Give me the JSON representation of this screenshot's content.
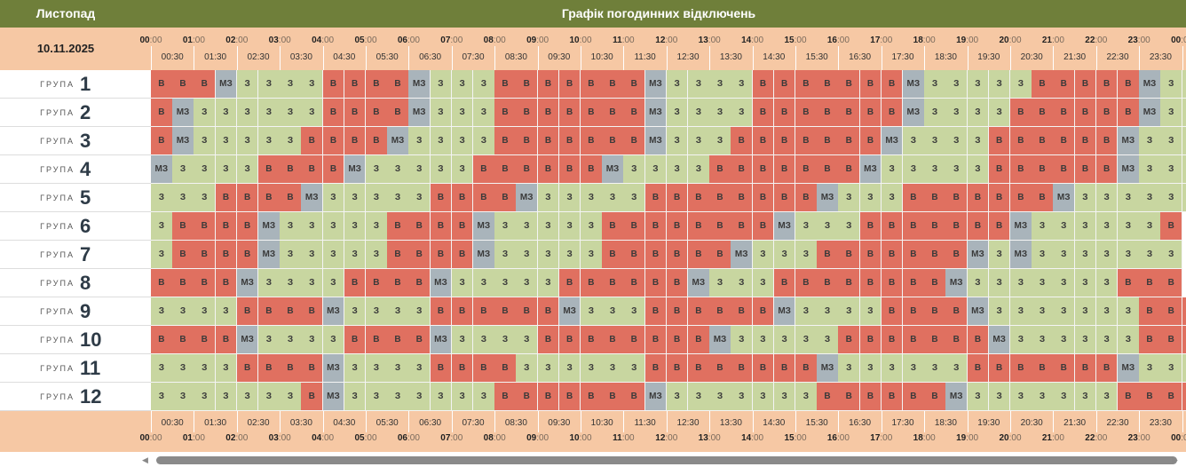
{
  "header": {
    "month": "Листопад",
    "title": "Графік погодинних відключень",
    "date": "10.11.2025"
  },
  "timeline": {
    "hours": [
      "00",
      "01",
      "02",
      "03",
      "04",
      "05",
      "06",
      "07",
      "08",
      "09",
      "10",
      "11",
      "12",
      "13",
      "14",
      "15",
      "16",
      "17",
      "18",
      "19",
      "20",
      "21",
      "22",
      "23",
      "00"
    ],
    "minutes": ":00",
    "half_hours": [
      "00:30",
      "01:30",
      "02:30",
      "03:30",
      "04:30",
      "05:30",
      "06:30",
      "07:30",
      "08:30",
      "09:30",
      "10:30",
      "11:30",
      "12:30",
      "13:30",
      "14:30",
      "15:30",
      "16:30",
      "17:30",
      "18:30",
      "19:30",
      "20:30",
      "21:30",
      "22:30",
      "23:30"
    ]
  },
  "legend_codes": {
    "B": "В",
    "Z": "З",
    "MZ": "МЗ"
  },
  "colors": {
    "B": "#e07060",
    "Z": "#c8d6a0",
    "MZ": "#a9b4bb",
    "topbar": "#6f7f3a",
    "header": "#f6c8a4"
  },
  "group_word": "ГРУПА",
  "groups": [
    {
      "number": "1",
      "slots": "B B B MZ Z Z Z Z B B B B MZ Z Z Z B B B B B B B MZ Z Z Z Z B B B B B B B MZ Z Z Z Z Z B B B B B MZ Z Z"
    },
    {
      "number": "2",
      "slots": "B MZ Z Z Z Z Z Z B B B B MZ Z Z Z B B B B B B B MZ Z Z Z Z B B B B B B B MZ Z Z Z Z B B B B B B MZ Z Z"
    },
    {
      "number": "3",
      "slots": "B MZ Z Z Z Z Z B B B B MZ Z Z Z Z B B B B B B B MZ Z Z Z B B B B B B B MZ Z Z Z Z B B B B B B MZ Z Z Z"
    },
    {
      "number": "4",
      "slots": "MZ Z Z Z Z B B B B MZ Z Z Z Z Z B B B B B B MZ Z Z Z Z B B B B B B B MZ Z Z Z Z Z B B B B B B MZ Z Z Z"
    },
    {
      "number": "5",
      "slots": "Z Z Z B B B B MZ Z Z Z Z Z B B B B MZ Z Z Z Z Z B B B B B B B B MZ Z Z Z B B B B B B B MZ Z Z Z Z Z Z"
    },
    {
      "number": "6",
      "slots": "Z B B B B MZ Z Z Z Z Z B B B B MZ Z Z Z Z Z B B B B B B B B MZ Z Z Z B B B B B B B MZ Z Z Z Z Z Z B"
    },
    {
      "number": "7",
      "slots": "Z B B B B MZ Z Z Z Z Z B B B B MZ Z Z Z Z Z B B B B B B MZ Z Z Z B B B B B B B MZ Z MZ Z Z Z Z Z Z Z"
    },
    {
      "number": "8",
      "slots": "B B B B MZ Z Z Z Z B B B B MZ Z Z Z Z Z B B B B B B MZ Z Z Z B B B B B B B B MZ Z Z Z Z Z Z Z B B B"
    },
    {
      "number": "9",
      "slots": "Z Z Z Z B B B B MZ Z Z Z Z B B B B B B MZ Z Z Z B B B B B B MZ Z Z Z Z B B B B MZ Z Z Z Z Z Z Z B B B"
    },
    {
      "number": "10",
      "slots": "B B B B MZ Z Z Z Z B B B B MZ Z Z Z Z B B B B B B B B MZ Z Z Z Z Z B B B B B B B MZ Z Z Z Z Z Z B B B"
    },
    {
      "number": "11",
      "slots": "Z Z Z Z B B B B MZ Z Z Z Z B B B B Z Z Z Z Z Z B B B B B B B B MZ Z Z Z Z Z Z B B B B B B B MZ Z Z Z Z"
    },
    {
      "number": "12",
      "slots": "Z Z Z Z Z Z Z B MZ Z Z Z Z Z Z Z B B B B B B B MZ Z Z Z Z Z Z Z B B B B B B MZ Z Z Z Z Z Z Z B B B B MZ"
    }
  ]
}
